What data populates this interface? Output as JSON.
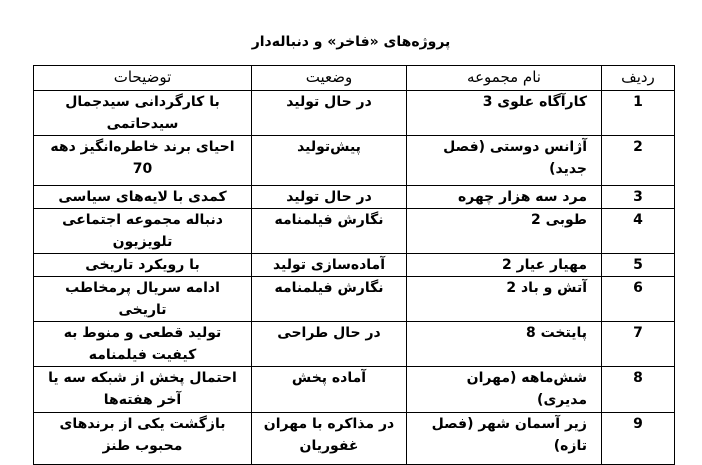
{
  "title": "پروژه‌های «فاخر» و دنباله‌دار",
  "table": {
    "headers": [
      "ردیف",
      "نام مجموعه",
      "وضعیت",
      "توضیحات"
    ],
    "rows": [
      {
        "row": "1",
        "name": "کارآگاه علوی 3",
        "status": "در حال تولید",
        "desc": "با کارگردانی سیدجمال سیدحاتمی"
      },
      {
        "row": "2",
        "name": "آژانس دوستی (فصل جدید)",
        "status": "پیش‌تولید",
        "desc": "احیای برند خاطره‌انگیز دهه 70"
      },
      {
        "row": "3",
        "name": "مرد سه هزار چهره",
        "status": "در حال تولید",
        "desc": "کمدی با لایه‌های سیاسی"
      },
      {
        "row": "4",
        "name": "طوبی 2",
        "status": "نگارش فیلمنامه",
        "desc": "دنباله مجموعه اجتماعی تلویزیون"
      },
      {
        "row": "5",
        "name": "مهیار عیار 2",
        "status": "آماده‌سازی تولید",
        "desc": "با رویکرد تاریخی"
      },
      {
        "row": "6",
        "name": "آتش و باد 2",
        "status": "نگارش فیلمنامه",
        "desc": "ادامه سریال پرمخاطب تاریخی"
      },
      {
        "row": "7",
        "name": "پایتخت 8",
        "status": "در حال طراحی",
        "desc": "تولید قطعی و منوط به کیفیت فیلمنامه"
      },
      {
        "row": "8",
        "name": "شش‌ماهه (مهران مدیری)",
        "status": "آماده پخش",
        "desc": "احتمال پخش از شبکه سه یا آخر هفته‌ها"
      },
      {
        "row": "9",
        "name": "زیر آسمان شهر (فصل تازه)",
        "status": "در مذاکره با مهران غفوریان",
        "desc": "بازگشت یکی از برندهای محبوب طنز"
      }
    ]
  }
}
